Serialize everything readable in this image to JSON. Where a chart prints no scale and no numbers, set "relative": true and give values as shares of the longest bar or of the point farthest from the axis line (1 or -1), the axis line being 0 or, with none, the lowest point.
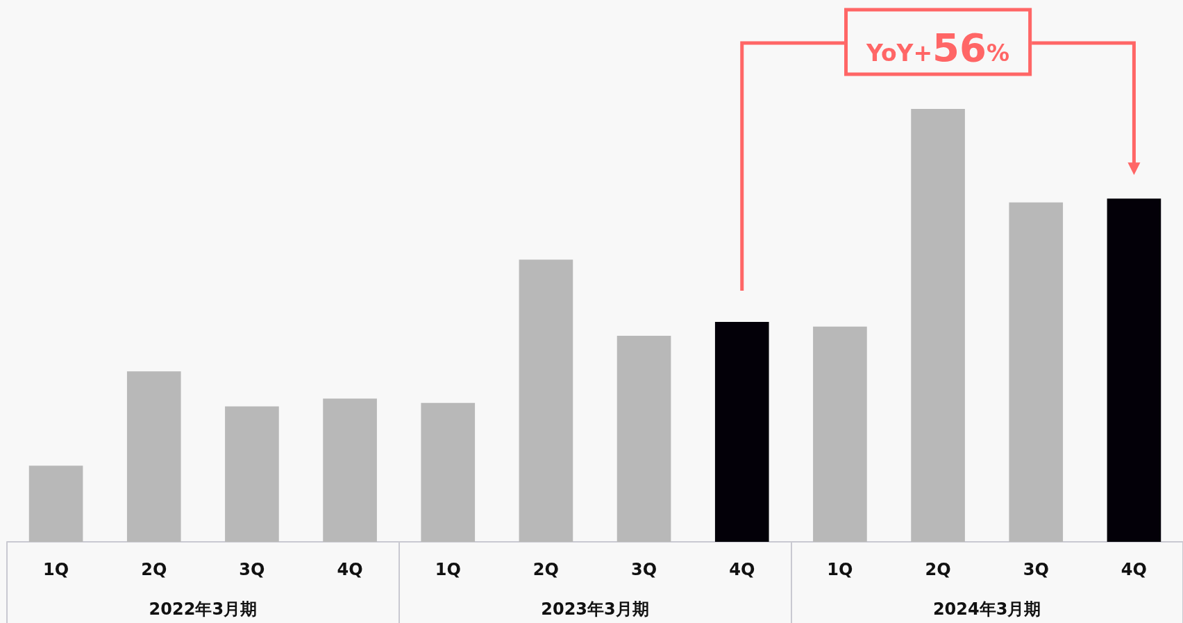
{
  "chart_data": {
    "type": "bar",
    "relative": true,
    "categories": [
      "1Q",
      "2Q",
      "3Q",
      "4Q",
      "1Q",
      "2Q",
      "3Q",
      "4Q",
      "1Q",
      "2Q",
      "3Q",
      "4Q"
    ],
    "values": [
      0.176,
      0.394,
      0.313,
      0.331,
      0.321,
      0.652,
      0.476,
      0.508,
      0.497,
      1,
      0.784,
      0.793
    ],
    "colors": [
      "#b8b8b8",
      "#b8b8b8",
      "#b8b8b8",
      "#b8b8b8",
      "#b8b8b8",
      "#b8b8b8",
      "#b8b8b8",
      "#030008",
      "#b8b8b8",
      "#b8b8b8",
      "#b8b8b8",
      "#030008"
    ],
    "annotations": [
      "YoY+56%",
      "2022年3月期",
      "2023年3月期",
      "2024年3月期"
    ]
  }
}
